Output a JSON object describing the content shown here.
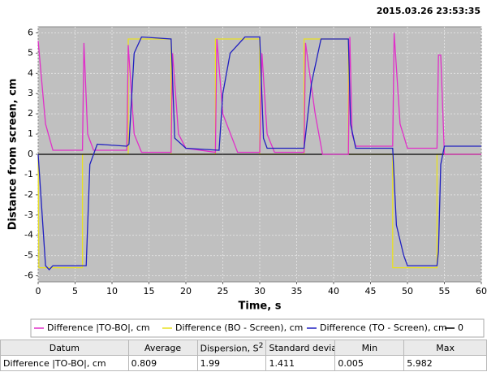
{
  "chart_data": {
    "type": "line",
    "annotation": "2015.03.26 23:53:35",
    "xlabel": "Time, s",
    "ylabel": "Distance from screen, cm",
    "xlim": [
      0,
      60
    ],
    "ylim": [
      -6.3,
      6.3
    ],
    "xticks": [
      0,
      5,
      10,
      15,
      20,
      25,
      30,
      35,
      40,
      45,
      50,
      55,
      60
    ],
    "yticks": [
      -6,
      -5,
      -4,
      -3,
      -2,
      -1,
      0,
      1,
      2,
      3,
      4,
      5,
      6
    ],
    "grid": true,
    "series": [
      {
        "name": "Difference |TO-BO|, cm",
        "color": "#e030c8",
        "x": [
          0,
          1,
          2,
          6,
          6.2,
          6.7,
          7.5,
          12,
          12.2,
          13,
          14,
          18,
          18.2,
          19,
          20,
          24,
          24.2,
          25,
          27,
          30,
          30.3,
          31,
          32,
          36,
          36.2,
          37.5,
          38.5,
          42,
          42.2,
          42.5,
          43,
          48,
          48.2,
          49,
          50,
          54,
          54.2,
          54.5,
          55,
          60
        ],
        "values": [
          5.6,
          1.5,
          0.2,
          0.2,
          5.5,
          1.0,
          0.2,
          0.2,
          5.4,
          1.0,
          0.1,
          0.1,
          5.0,
          1.0,
          0.3,
          0.1,
          5.7,
          2.0,
          0.1,
          0.1,
          5.0,
          1.0,
          0.1,
          0.1,
          5.5,
          2.0,
          0,
          0,
          5.8,
          1.0,
          0.4,
          0.4,
          6.0,
          1.5,
          0.3,
          0.3,
          4.9,
          4.9,
          0,
          0
        ]
      },
      {
        "name": "Difference (BO - Screen), cm",
        "color": "#e8e020",
        "x": [
          0,
          0.1,
          6,
          6,
          12.2,
          12.2,
          18,
          18,
          24,
          24,
          30,
          30,
          36,
          36,
          42,
          42,
          48,
          48,
          54,
          54,
          60
        ],
        "values": [
          0,
          -5.6,
          -5.6,
          0,
          0,
          5.7,
          5.7,
          0,
          0,
          5.7,
          5.7,
          0,
          0,
          5.7,
          5.7,
          0,
          0,
          -5.6,
          -5.6,
          0,
          0
        ]
      },
      {
        "name": "Difference (TO - Screen), cm",
        "color": "#2020c0",
        "x": [
          0,
          1,
          1.5,
          2,
          6.5,
          7,
          8,
          12,
          12.3,
          13,
          14,
          18,
          18.5,
          20,
          24.5,
          25,
          26,
          28,
          30,
          30.5,
          31,
          36,
          37,
          38.3,
          42,
          42.3,
          43,
          48,
          48.5,
          49.5,
          50,
          54,
          54.2,
          54.5,
          55,
          60
        ],
        "values": [
          0,
          -5.5,
          -5.7,
          -5.5,
          -5.5,
          -0.5,
          0.5,
          0.4,
          0.5,
          5.0,
          5.8,
          5.7,
          0.8,
          0.3,
          0.2,
          3.0,
          5.0,
          5.8,
          5.8,
          0.8,
          0.3,
          0.3,
          3.5,
          5.7,
          5.7,
          1.5,
          0.3,
          0.3,
          -3.5,
          -5.0,
          -5.5,
          -5.5,
          -4.8,
          -0.5,
          0.4,
          0.4
        ]
      },
      {
        "name": "0",
        "color": "#000000",
        "x": [
          0,
          60
        ],
        "values": [
          0,
          0
        ]
      }
    ]
  },
  "table": {
    "header": [
      "Datum",
      "Average",
      {
        "text": "Dispersion, S",
        "sup": "2"
      },
      "Standard devia...",
      "Min",
      "Max"
    ],
    "rows": [
      [
        "Difference |TO-BO|, cm",
        "0.809",
        "1.99",
        "1.411",
        "0.005",
        "5.982"
      ]
    ]
  }
}
